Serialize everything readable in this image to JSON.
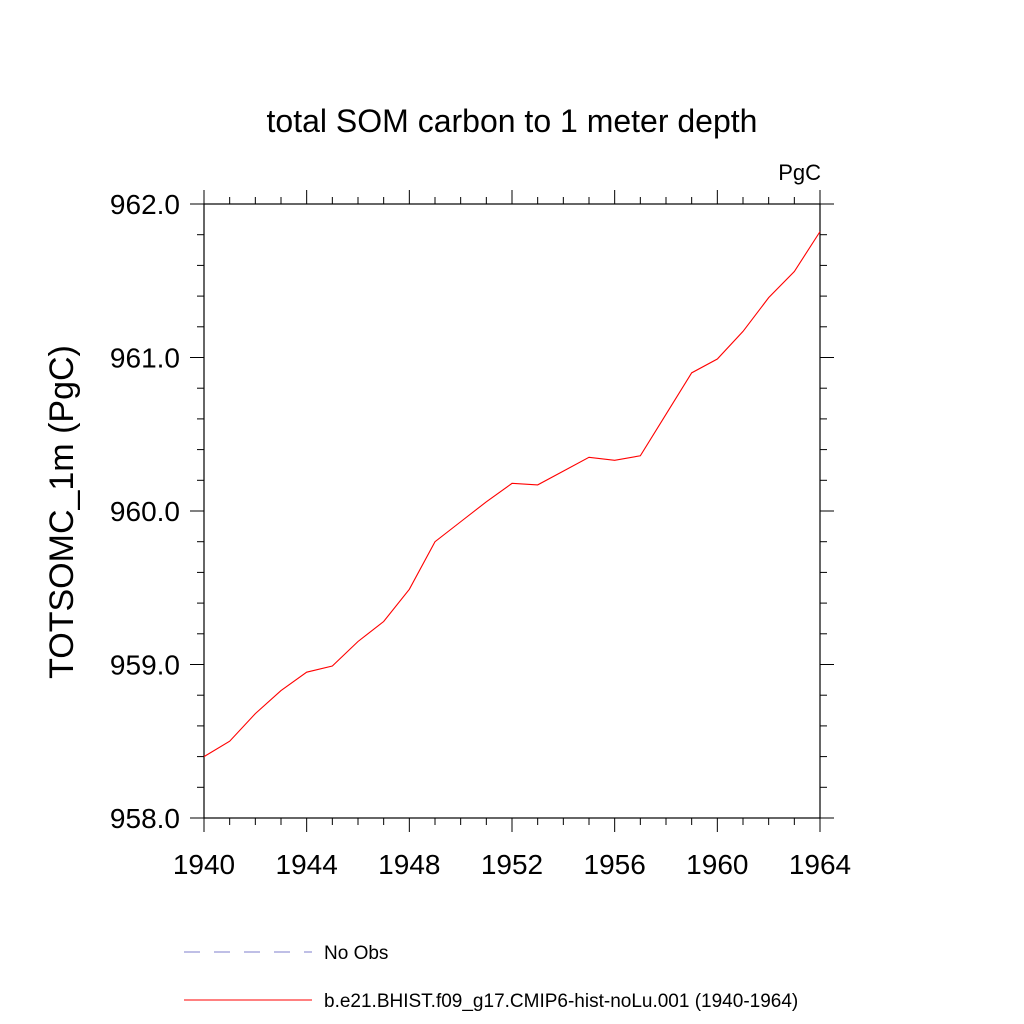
{
  "chart_data": {
    "type": "line",
    "title": "total SOM carbon to 1 meter depth",
    "units_label": "PgC",
    "ylabel": "TOTSOMC_1m  (PgC)",
    "xlabel": "",
    "xlim": [
      1940,
      1964
    ],
    "ylim": [
      958.0,
      962.0
    ],
    "x_ticks": [
      "1940",
      "1944",
      "1948",
      "1952",
      "1956",
      "1960",
      "1964"
    ],
    "y_ticks": [
      "958.0",
      "959.0",
      "960.0",
      "961.0",
      "962.0"
    ],
    "x": [
      1940,
      1941,
      1942,
      1943,
      1944,
      1945,
      1946,
      1947,
      1948,
      1949,
      1950,
      1951,
      1952,
      1953,
      1954,
      1955,
      1956,
      1957,
      1958,
      1959,
      1960,
      1961,
      1962,
      1963,
      1964
    ],
    "series": [
      {
        "name": "b.e21.BHIST.f09_g17.CMIP6-hist-noLu.001 (1940-1964)",
        "color": "#ff0000",
        "values": [
          958.4,
          958.5,
          958.68,
          958.83,
          958.95,
          958.99,
          959.15,
          959.28,
          959.49,
          959.8,
          959.93,
          960.06,
          960.18,
          960.17,
          960.26,
          960.35,
          960.33,
          960.36,
          960.63,
          960.9,
          960.99,
          961.17,
          961.39,
          961.56,
          961.82
        ]
      }
    ],
    "legend": [
      {
        "label": "No Obs",
        "color": "#7f7fcc",
        "style": "dashed"
      },
      {
        "label": "b.e21.BHIST.f09_g17.CMIP6-hist-noLu.001 (1940-1964)",
        "color": "#ff0000",
        "style": "solid"
      }
    ],
    "legend_position": "bottom",
    "grid": false
  }
}
